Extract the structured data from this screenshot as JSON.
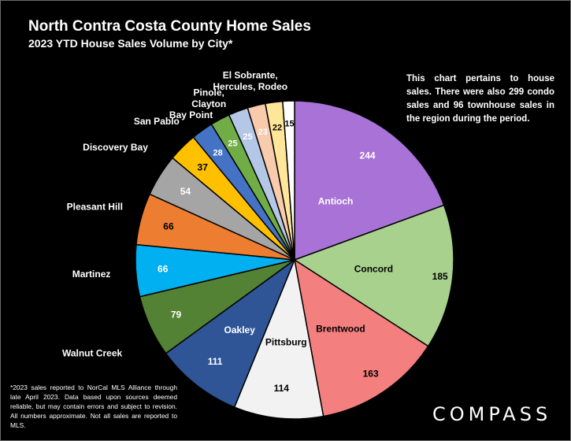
{
  "header": {
    "title": "North Contra Costa County Home Sales",
    "subtitle": "2023 YTD House Sales Volume by City*"
  },
  "note": "This chart pertains to house sales. There were also 299 condo sales and 96 townhouse sales in the region during the period.",
  "footnote": "*2023 sales reported to NorCal MLS Alliance through late April 2023. Data based upon sources deemed reliable, but may contain errors and subject to revision. All numbers approximate. Not all sales are reported to MLS.",
  "brand": "COMPASS",
  "chart_data": {
    "type": "pie",
    "title": "2023 YTD House Sales Volume by City*",
    "categories": [
      "Antioch",
      "Concord",
      "Brentwood",
      "Pittsburg",
      "Oakley",
      "Walnut Creek",
      "Martinez",
      "Pleasant Hill",
      "Discovery Bay",
      "San Pablo",
      "Bay Point",
      "Pinole, Clayton",
      "",
      "El Sobrante, Hercules, Rodeo",
      "",
      ""
    ],
    "values": [
      244,
      185,
      163,
      114,
      111,
      79,
      66,
      66,
      54,
      37,
      28,
      25,
      25,
      23,
      22,
      15
    ],
    "colors": [
      "#a872d6",
      "#a9d18e",
      "#f47f7f",
      "#f2f2f2",
      "#2f5597",
      "#548235",
      "#00b0f0",
      "#ed7d31",
      "#a5a5a5",
      "#ffc000",
      "#4472c4",
      "#70ad47",
      "#b4c7e7",
      "#f8cbad",
      "#ffe699",
      "#ffffff"
    ],
    "legend": "none",
    "start": "12 o'clock, clockwise"
  }
}
